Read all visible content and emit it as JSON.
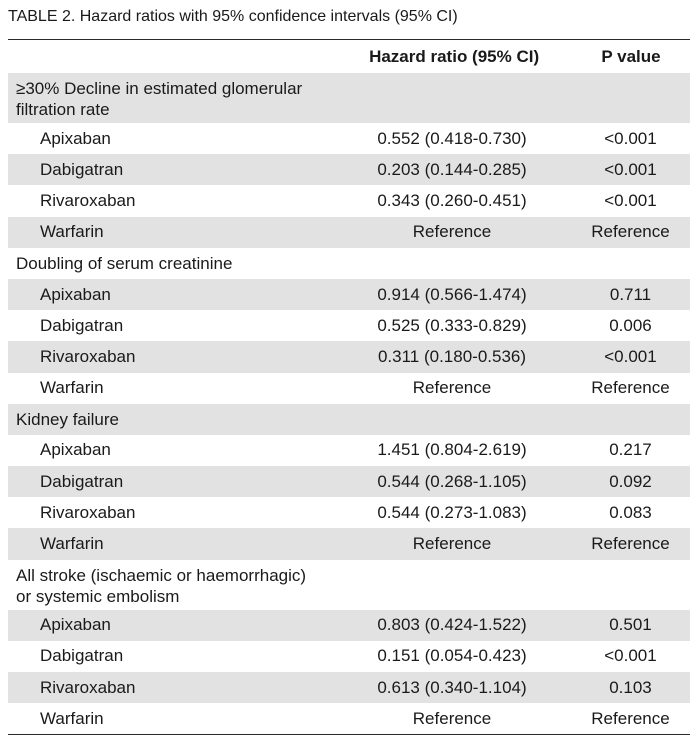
{
  "caption": {
    "label": "TABLE 2.",
    "title": "Hazard ratios with 95% confidence intervals (95% CI)"
  },
  "header": {
    "col1": "",
    "col2": "Hazard ratio (95% CI)",
    "col3": "P value"
  },
  "sections": [
    {
      "title_line1": "≥30% Decline in estimated glomerular",
      "title_line2": "filtration rate",
      "rows": [
        {
          "drug": "Apixaban",
          "hr": "0.552 (0.418-0.730)",
          "p": "<0.001"
        },
        {
          "drug": "Dabigatran",
          "hr": "0.203 (0.144-0.285)",
          "p": "<0.001"
        },
        {
          "drug": "Rivaroxaban",
          "hr": "0.343 (0.260-0.451)",
          "p": "<0.001"
        },
        {
          "drug": "Warfarin",
          "hr": "Reference",
          "p": "Reference"
        }
      ]
    },
    {
      "title_line1": "Doubling of serum creatinine",
      "title_line2": "",
      "rows": [
        {
          "drug": "Apixaban",
          "hr": "0.914 (0.566-1.474)",
          "p": "0.711"
        },
        {
          "drug": "Dabigatran",
          "hr": "0.525 (0.333-0.829)",
          "p": "0.006"
        },
        {
          "drug": "Rivaroxaban",
          "hr": "0.311 (0.180-0.536)",
          "p": "<0.001"
        },
        {
          "drug": "Warfarin",
          "hr": "Reference",
          "p": "Reference"
        }
      ]
    },
    {
      "title_line1": "Kidney failure",
      "title_line2": "",
      "rows": [
        {
          "drug": "Apixaban",
          "hr": "1.451 (0.804-2.619)",
          "p": "0.217"
        },
        {
          "drug": "Dabigatran",
          "hr": "0.544 (0.268-1.105)",
          "p": "0.092"
        },
        {
          "drug": "Rivaroxaban",
          "hr": "0.544 (0.273-1.083)",
          "p": "0.083"
        },
        {
          "drug": "Warfarin",
          "hr": "Reference",
          "p": "Reference"
        }
      ]
    },
    {
      "title_line1": "All stroke (ischaemic or haemorrhagic)",
      "title_line2": "or systemic embolism",
      "rows": [
        {
          "drug": "Apixaban",
          "hr": "0.803 (0.424-1.522)",
          "p": "0.501"
        },
        {
          "drug": "Dabigatran",
          "hr": "0.151 (0.054-0.423)",
          "p": "<0.001"
        },
        {
          "drug": "Rivaroxaban",
          "hr": "0.613 (0.340-1.104)",
          "p": "0.103"
        },
        {
          "drug": "Warfarin",
          "hr": "Reference",
          "p": "Reference"
        }
      ]
    }
  ]
}
